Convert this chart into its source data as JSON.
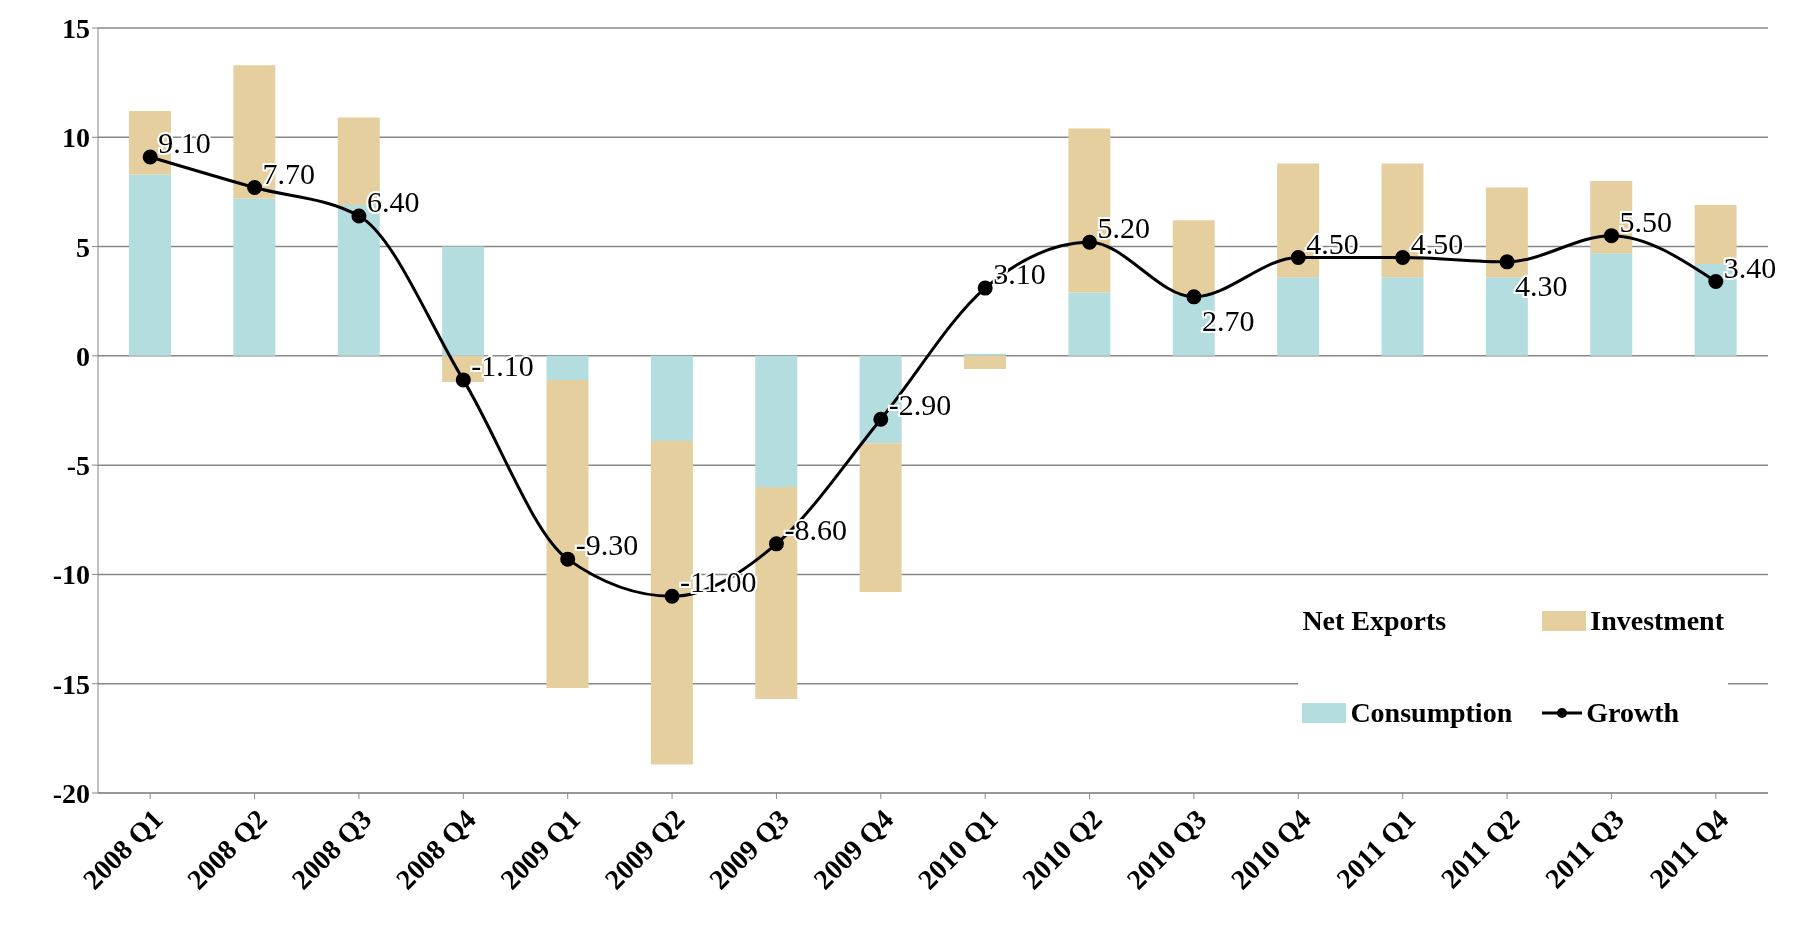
{
  "chart_data": {
    "type": "bar",
    "stacked": true,
    "categories": [
      "2008 Q1",
      "2008 Q2",
      "2008 Q3",
      "2008 Q4",
      "2009 Q1",
      "2009 Q2",
      "2009 Q3",
      "2009 Q4",
      "2010 Q1",
      "2010 Q2",
      "2010 Q3",
      "2010 Q4",
      "2011 Q1",
      "2011 Q2",
      "2011 Q3",
      "2011 Q4"
    ],
    "series": [
      {
        "name": "Consumption",
        "color": "#b4dde0",
        "values": [
          8.3,
          7.2,
          6.9,
          5.0,
          -1.1,
          -3.9,
          -6.0,
          -4.0,
          0.1,
          2.9,
          2.8,
          3.6,
          3.6,
          3.6,
          4.7,
          4.2
        ]
      },
      {
        "name": "Investment",
        "color": "#e6cf9e",
        "values": [
          2.9,
          6.1,
          4.0,
          -1.2,
          -14.1,
          -14.8,
          -9.7,
          -6.8,
          -0.6,
          7.5,
          3.4,
          5.2,
          5.2,
          4.1,
          3.3,
          2.7
        ]
      },
      {
        "name": "Net Exports",
        "values": [
          null,
          null,
          null,
          null,
          null,
          null,
          null,
          null,
          null,
          null,
          null,
          null,
          null,
          null,
          null,
          null
        ]
      },
      {
        "name": "Growth",
        "type": "line",
        "color": "#000000",
        "marker": "circle",
        "values": [
          9.1,
          7.7,
          6.4,
          -1.1,
          -9.3,
          -11.0,
          -8.6,
          -2.9,
          3.1,
          5.2,
          2.7,
          4.5,
          4.5,
          4.3,
          5.5,
          3.4
        ],
        "value_labels": [
          "9.10",
          "7.70",
          "6.40",
          "-1.10",
          "-9.30",
          "-11.00",
          "-8.60",
          "-2.90",
          "3.10",
          "5.20",
          "2.70",
          "4.50",
          "4.50",
          "4.30",
          "5.50",
          "3.40"
        ]
      }
    ],
    "ylim": [
      -20,
      15
    ],
    "yticks": [
      -20,
      -15,
      -10,
      -5,
      0,
      5,
      10,
      15
    ],
    "grid": "y",
    "legend": "bottom right"
  }
}
